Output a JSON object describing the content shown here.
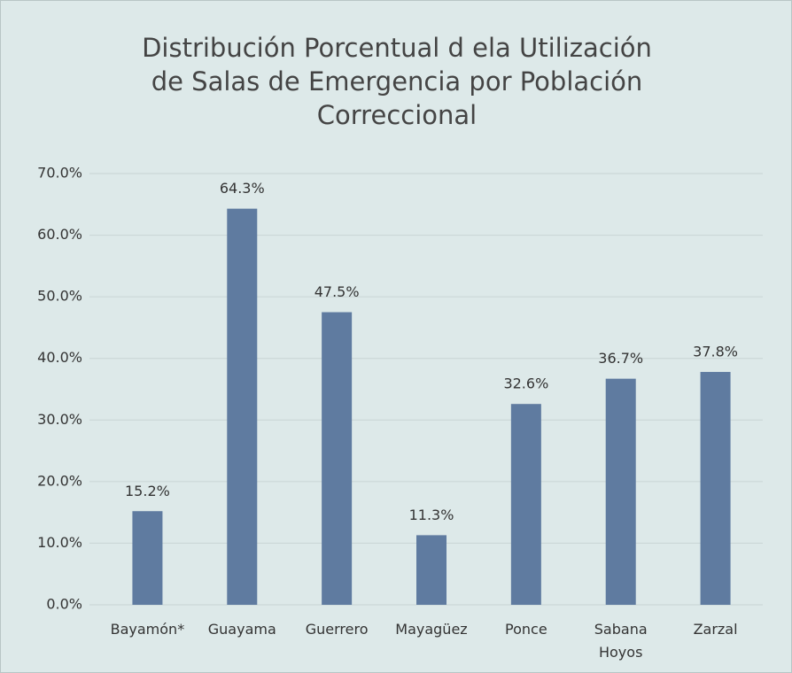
{
  "chart_data": {
    "type": "bar",
    "title": "Distribución Porcentual d ela Utilización de Salas de Emergencia por Población Correccional",
    "categories": [
      "Bayamón*",
      "Guayama",
      "Guerrero",
      "Mayagüez",
      "Ponce",
      "Sabana Hoyos",
      "Zarzal"
    ],
    "values": [
      15.2,
      64.3,
      47.5,
      11.3,
      32.6,
      36.7,
      37.8
    ],
    "value_labels": [
      "15.2%",
      "64.3%",
      "47.5%",
      "11.3%",
      "32.6%",
      "36.7%",
      "37.8%"
    ],
    "color": "#5f7ba0",
    "ylim": [
      0,
      70
    ],
    "yticks": [
      {
        "value": 0,
        "label": "0.0%"
      },
      {
        "value": 10,
        "label": "10.0%"
      },
      {
        "value": 20,
        "label": "20.0%"
      },
      {
        "value": 30,
        "label": "30.0%"
      },
      {
        "value": 40,
        "label": "40.0%"
      },
      {
        "value": 50,
        "label": "50.0%"
      },
      {
        "value": 60,
        "label": "60.0%"
      },
      {
        "value": 70,
        "label": "70.0%"
      }
    ],
    "grid": true
  }
}
